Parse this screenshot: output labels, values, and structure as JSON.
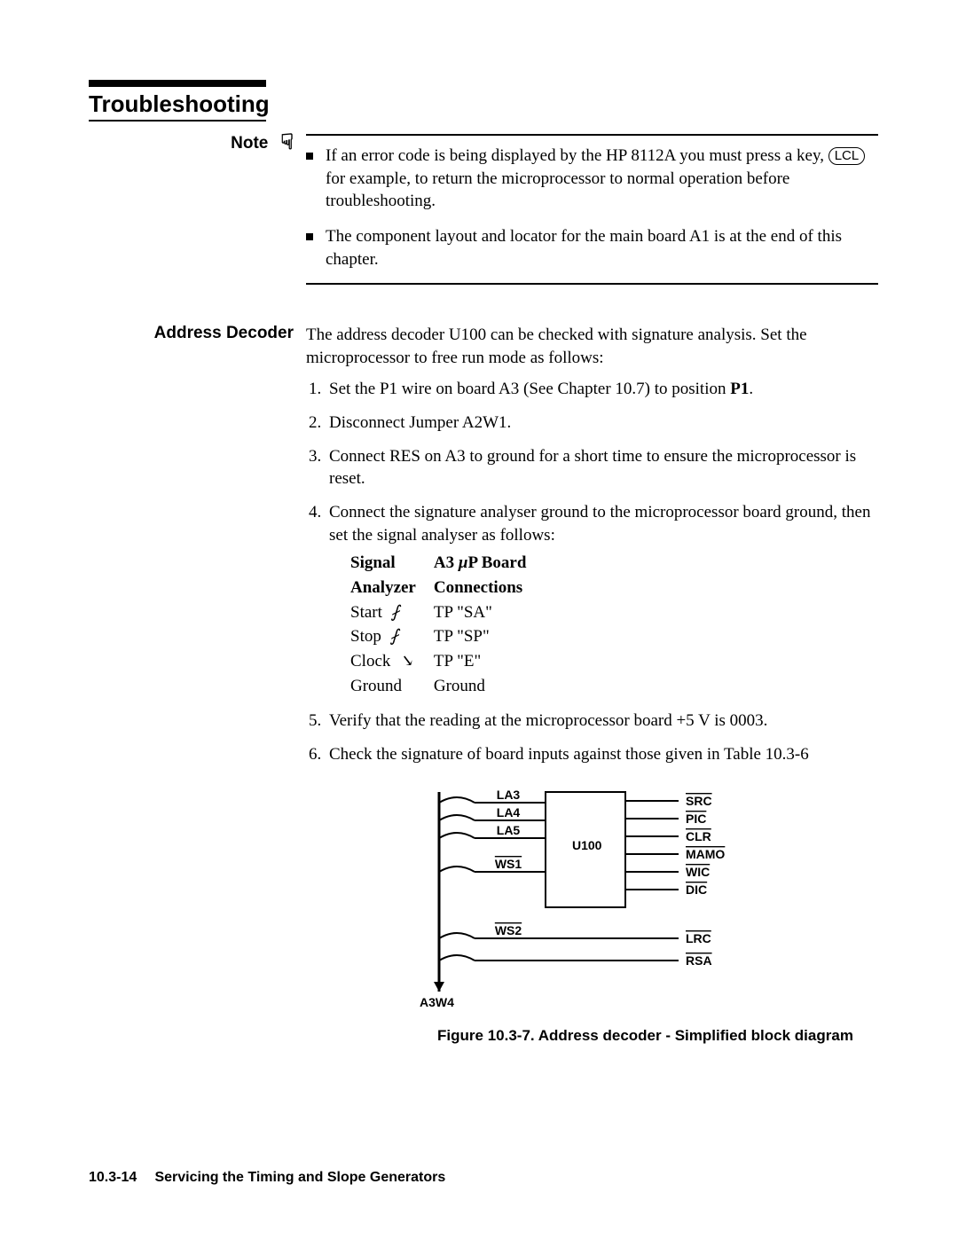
{
  "section_title": "Troubleshooting",
  "note": {
    "label": "Note",
    "bullets": [
      {
        "pre": "If an error code is being displayed by the HP 8112A you must press a key, ",
        "key": "LCL",
        "post": " for example, to return the microprocessor to normal operation before troubleshooting."
      },
      {
        "text": "The component layout and locator for the main board A1 is at the end of this chapter."
      }
    ]
  },
  "decoder": {
    "label": "Address Decoder",
    "intro": "The address decoder U100 can be checked with signature analysis. Set the microprocessor to free run mode as follows:",
    "steps": {
      "s1_pre": "Set the P1 wire on board A3 (See Chapter 10.7) to position ",
      "s1_bold": "P1",
      "s1_post": ".",
      "s2": "Disconnect Jumper A2W1.",
      "s3": "Connect RES on A3 to ground for a short time to ensure the microprocessor is reset.",
      "s4": "Connect the signature analyser ground to the microprocessor board ground, then set the signal analyser as follows:",
      "s5": "Verify that the reading at the microprocessor board +5 V is 0003.",
      "s6": "Check the signature of board inputs against those given in Table 10.3-6"
    },
    "sig_table": {
      "h1a": "Signal",
      "h1b": "Analyzer",
      "h2a": "A3 ",
      "h2b": "P Board",
      "h2c": "Connections",
      "r1a": "Start",
      "r1b": "TP \"SA\"",
      "r2a": "Stop",
      "r2b": "TP \"SP\"",
      "r3a": "Clock",
      "r3b": "TP \"E\"",
      "r4a": "Ground",
      "r4b": "Ground"
    }
  },
  "diagram": {
    "block_label": "U100",
    "left_signals": [
      "LA3",
      "LA4",
      "LA5",
      "WS1",
      "WS2"
    ],
    "left_overline": [
      false,
      false,
      false,
      true,
      true
    ],
    "right_signals": [
      "SRC",
      "PIC",
      "CLR",
      "MAMO",
      "WIC",
      "DIC",
      "LRC",
      "RSA"
    ],
    "right_overline": [
      true,
      true,
      true,
      true,
      true,
      true,
      true,
      true
    ],
    "bus_label": "A3W4",
    "caption": "Figure 10.3-7. Address decoder - Simplified block diagram"
  },
  "footer": {
    "page": "10.3-14",
    "text": "Servicing the Timing and Slope Generators"
  }
}
